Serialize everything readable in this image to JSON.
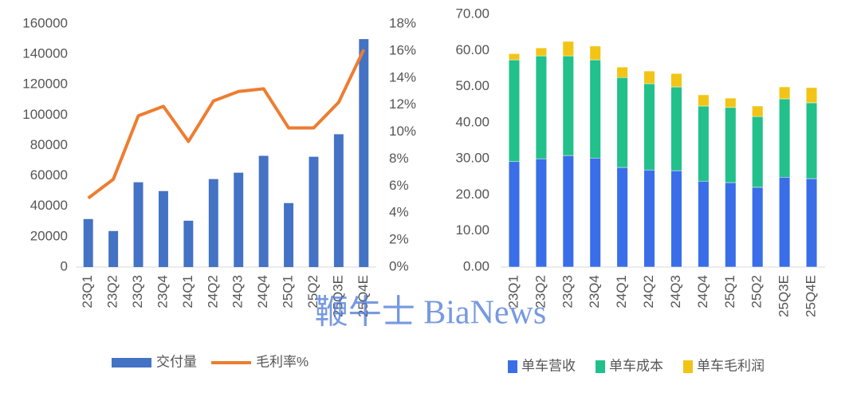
{
  "chart_data": [
    {
      "type": "combo",
      "categories": [
        "23Q1",
        "23Q2",
        "23Q3",
        "23Q4",
        "24Q1",
        "24Q2",
        "24Q3",
        "24Q4",
        "25Q1",
        "25Q2",
        "25Q3E",
        "25Q4E"
      ],
      "series": [
        {
          "name": "交付量",
          "type": "bar",
          "color": "#4472c4",
          "values": [
            31600,
            23700,
            55800,
            50000,
            30500,
            57900,
            62100,
            73200,
            42100,
            72600,
            87400,
            150000
          ]
        },
        {
          "name": "毛利率%",
          "type": "line",
          "axis": "y2",
          "color": "#ed7d31",
          "values": [
            5.1,
            6.5,
            11.2,
            11.9,
            9.3,
            12.3,
            13.0,
            13.2,
            10.3,
            10.3,
            12.2,
            16.1
          ]
        }
      ],
      "ylim": [
        0,
        160000
      ],
      "yticks": [
        0,
        20000,
        40000,
        60000,
        80000,
        100000,
        120000,
        140000,
        160000
      ],
      "y2lim": [
        0,
        18
      ],
      "y2ticks": [
        {
          "value": 0,
          "label": "0%"
        },
        {
          "value": 2,
          "label": "2%"
        },
        {
          "value": 4,
          "label": "4%"
        },
        {
          "value": 6,
          "label": "6%"
        },
        {
          "value": 8,
          "label": "8%"
        },
        {
          "value": 10,
          "label": "10%"
        },
        {
          "value": 12,
          "label": "12%"
        },
        {
          "value": 14,
          "label": "14%"
        },
        {
          "value": 16,
          "label": "16%"
        },
        {
          "value": 18,
          "label": "18%"
        }
      ],
      "legend": "bottom"
    },
    {
      "type": "stacked_bar",
      "categories": [
        "23Q1",
        "23Q2",
        "23Q3",
        "23Q4",
        "24Q1",
        "24Q2",
        "24Q3",
        "24Q4",
        "25Q1",
        "25Q2",
        "25Q3E",
        "25Q4E"
      ],
      "series": [
        {
          "name": "单车营收",
          "color": "#3a6ee8",
          "values": [
            29.2,
            30.0,
            30.9,
            30.2,
            27.6,
            26.9,
            26.7,
            23.8,
            23.4,
            22.1,
            24.9,
            24.5
          ]
        },
        {
          "name": "单车成本",
          "color": "#22c08a",
          "values": [
            28.2,
            28.5,
            27.6,
            27.2,
            24.9,
            23.9,
            23.2,
            20.8,
            20.8,
            19.6,
            21.7,
            21.0
          ]
        },
        {
          "name": "单车毛利润",
          "color": "#f2c416",
          "values": [
            1.7,
            2.2,
            4.0,
            3.8,
            2.9,
            3.5,
            3.7,
            3.1,
            2.6,
            2.9,
            3.3,
            4.2
          ]
        }
      ],
      "ylim": [
        0,
        70
      ],
      "yticks": [
        {
          "value": 0,
          "label": "0.00"
        },
        {
          "value": 10,
          "label": "10.00"
        },
        {
          "value": 20,
          "label": "20.00"
        },
        {
          "value": 30,
          "label": "30.00"
        },
        {
          "value": 40,
          "label": "40.00"
        },
        {
          "value": 50,
          "label": "50.00"
        },
        {
          "value": 60,
          "label": "60.00"
        },
        {
          "value": 70,
          "label": "70.00"
        }
      ],
      "legend": "bottom"
    }
  ],
  "watermark": "鞭牛士 BiaNews"
}
